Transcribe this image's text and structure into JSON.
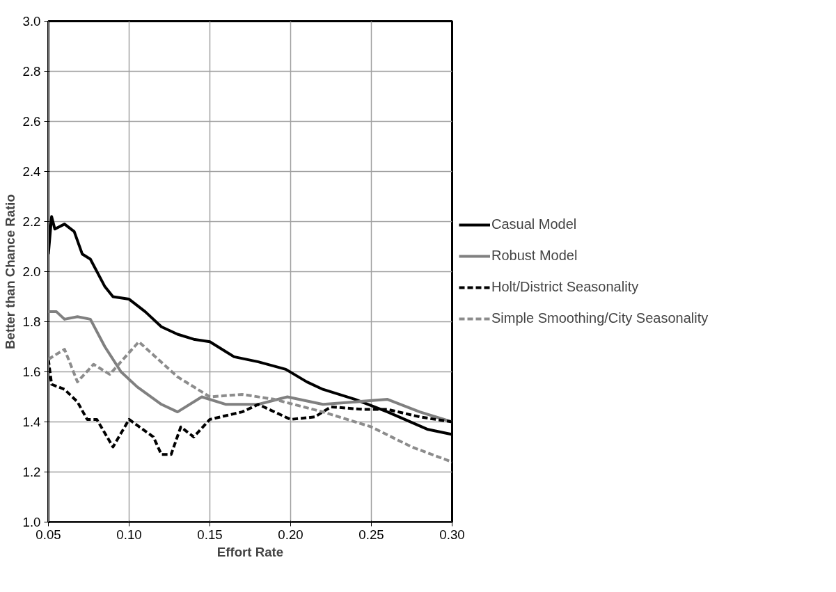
{
  "chart_data": {
    "type": "line",
    "xlabel": "Effort Rate",
    "ylabel": "Better than Chance Ratio",
    "xlim": [
      0.05,
      0.3
    ],
    "ylim": [
      1.0,
      3.0
    ],
    "xticks": [
      {
        "value": 0.05,
        "label": "0.05"
      },
      {
        "value": 0.1,
        "label": "0.10"
      },
      {
        "value": 0.15,
        "label": "0.15"
      },
      {
        "value": 0.2,
        "label": "0.20"
      },
      {
        "value": 0.25,
        "label": "0.25"
      },
      {
        "value": 0.3,
        "label": "0.30"
      }
    ],
    "yticks": [
      {
        "value": 1.0,
        "label": "1.0"
      },
      {
        "value": 1.2,
        "label": "1.2"
      },
      {
        "value": 1.4,
        "label": "1.4"
      },
      {
        "value": 1.6,
        "label": "1.6"
      },
      {
        "value": 1.8,
        "label": "1.8"
      },
      {
        "value": 2.0,
        "label": "2.0"
      },
      {
        "value": 2.2,
        "label": "2.2"
      },
      {
        "value": 2.4,
        "label": "2.4"
      },
      {
        "value": 2.6,
        "label": "2.6"
      },
      {
        "value": 2.8,
        "label": "2.8"
      },
      {
        "value": 3.0,
        "label": "3.0"
      }
    ],
    "grid": true,
    "legend": "right",
    "marker": "none",
    "series": [
      {
        "name": "Casual Model",
        "color": "#000000",
        "line_style": "solid",
        "x": [
          0.05,
          0.052,
          0.054,
          0.06,
          0.066,
          0.071,
          0.076,
          0.085,
          0.09,
          0.1,
          0.11,
          0.12,
          0.13,
          0.14,
          0.15,
          0.165,
          0.18,
          0.197,
          0.21,
          0.22,
          0.24,
          0.26,
          0.285,
          0.3
        ],
        "values": [
          2.07,
          2.22,
          2.17,
          2.19,
          2.16,
          2.07,
          2.05,
          1.94,
          1.9,
          1.89,
          1.84,
          1.78,
          1.75,
          1.73,
          1.72,
          1.66,
          1.64,
          1.61,
          1.56,
          1.53,
          1.49,
          1.44,
          1.37,
          1.35
        ]
      },
      {
        "name": "Robust Model",
        "color": "#808080",
        "line_style": "solid",
        "x": [
          0.05,
          0.055,
          0.06,
          0.068,
          0.076,
          0.085,
          0.095,
          0.105,
          0.12,
          0.13,
          0.145,
          0.16,
          0.18,
          0.198,
          0.22,
          0.26,
          0.28,
          0.3
        ],
        "values": [
          1.84,
          1.84,
          1.81,
          1.82,
          1.81,
          1.7,
          1.6,
          1.54,
          1.47,
          1.44,
          1.5,
          1.47,
          1.47,
          1.5,
          1.47,
          1.49,
          1.44,
          1.4
        ]
      },
      {
        "name": "Holt/District Seasonality",
        "color": "#000000",
        "line_style": "dashed",
        "x": [
          0.05,
          0.052,
          0.06,
          0.068,
          0.074,
          0.08,
          0.09,
          0.1,
          0.115,
          0.12,
          0.126,
          0.132,
          0.14,
          0.15,
          0.17,
          0.18,
          0.2,
          0.215,
          0.225,
          0.245,
          0.26,
          0.28,
          0.3
        ],
        "values": [
          1.65,
          1.55,
          1.53,
          1.48,
          1.41,
          1.41,
          1.3,
          1.41,
          1.34,
          1.27,
          1.27,
          1.38,
          1.34,
          1.41,
          1.44,
          1.47,
          1.41,
          1.42,
          1.46,
          1.45,
          1.45,
          1.42,
          1.4
        ]
      },
      {
        "name": "Simple Smoothing/City Seasonality",
        "color": "#8c8c8c",
        "line_style": "dashed",
        "x": [
          0.05,
          0.06,
          0.068,
          0.078,
          0.088,
          0.106,
          0.13,
          0.15,
          0.17,
          0.19,
          0.22,
          0.25,
          0.275,
          0.3
        ],
        "values": [
          1.65,
          1.69,
          1.56,
          1.63,
          1.59,
          1.72,
          1.58,
          1.5,
          1.51,
          1.49,
          1.44,
          1.38,
          1.3,
          1.24
        ]
      }
    ]
  }
}
